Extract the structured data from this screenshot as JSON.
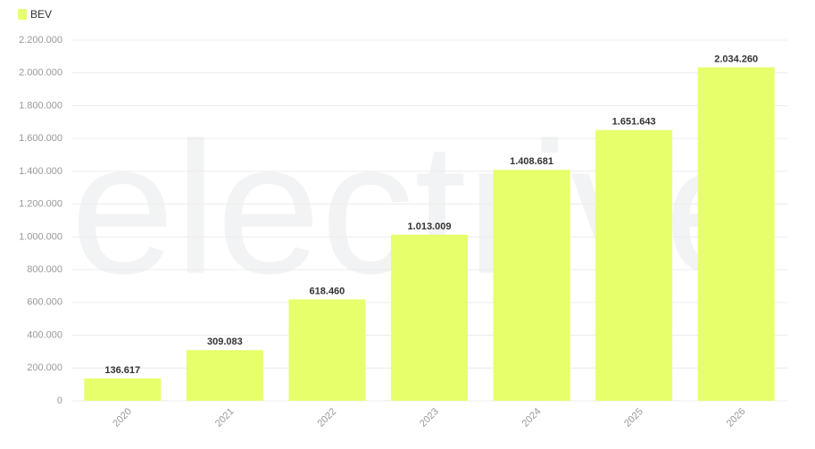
{
  "chart_data": {
    "type": "bar",
    "watermark": "electrive",
    "categories": [
      "2020",
      "2021",
      "2022",
      "2023",
      "2024",
      "2025",
      "2026"
    ],
    "series": [
      {
        "name": "BEV",
        "color": "#e6ff6b",
        "values": [
          136617,
          309083,
          618460,
          1013009,
          1408681,
          1651643,
          2034260
        ],
        "value_labels": [
          "136.617",
          "309.083",
          "618.460",
          "1.013.009",
          "1.408.681",
          "1.651.643",
          "2.034.260"
        ]
      }
    ],
    "ylim": [
      0,
      2200000
    ],
    "yticks": [
      0,
      {
        "value": 200000,
        "label": "200.000"
      },
      {
        "value": 400000,
        "label": "400.000"
      },
      {
        "value": 600000,
        "label": "600.000"
      },
      {
        "value": 800000,
        "label": "800.000"
      },
      {
        "value": 1000000,
        "label": "1.000.000"
      },
      {
        "value": 1200000,
        "label": "1.200.000"
      },
      {
        "value": 1400000,
        "label": "1.400.000"
      },
      {
        "value": 1600000,
        "label": "1.600.000"
      },
      {
        "value": 1800000,
        "label": "1.800.000"
      },
      {
        "value": 2000000,
        "label": "2.000.000"
      },
      {
        "value": 2200000,
        "label": "2.200.000"
      }
    ],
    "grid": true,
    "legend": "top-left"
  }
}
